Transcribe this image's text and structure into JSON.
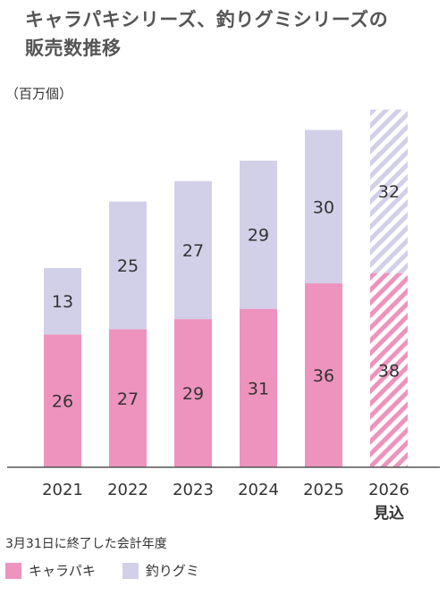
{
  "header": {
    "title_line1": "キャラパキシリーズ、釣りグミシリーズの",
    "title_line2": "販売数推移"
  },
  "footnote": "3月31日に終了した会計年度",
  "colors": {
    "series1": "#ee93bd",
    "series2": "#d2d0e8",
    "axis": "#555555",
    "label": "#333333"
  },
  "chart_data": {
    "type": "bar",
    "stacked": true,
    "unit_label": "（百万個）",
    "categories": [
      "2021",
      "2022",
      "2023",
      "2024",
      "2025",
      "2026"
    ],
    "category_sublabels": [
      "",
      "",
      "",
      "",
      "",
      "見込"
    ],
    "forecast_index": 5,
    "series": [
      {
        "name": "キャラパキ",
        "values": [
          26,
          27,
          29,
          31,
          36,
          38
        ]
      },
      {
        "name": "釣りグミ",
        "values": [
          13,
          25,
          27,
          29,
          30,
          32
        ]
      }
    ],
    "legend_position": "bottom-left",
    "grid": false
  }
}
